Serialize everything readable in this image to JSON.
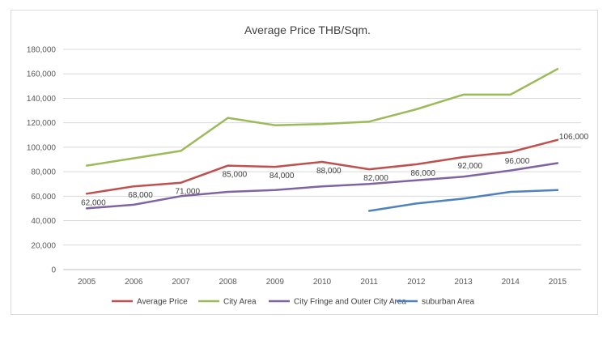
{
  "chart_data": {
    "type": "line",
    "title": "Average Price THB/Sqm.",
    "xlabel": "",
    "ylabel": "",
    "categories": [
      "2005",
      "2006",
      "2007",
      "2008",
      "2009",
      "2010",
      "2011",
      "2012",
      "2013",
      "2014",
      "2015"
    ],
    "ylim": [
      0,
      180000
    ],
    "yticks": [
      0,
      20000,
      40000,
      60000,
      80000,
      100000,
      120000,
      140000,
      160000,
      180000
    ],
    "ytick_labels": [
      "0",
      "20,000",
      "40,000",
      "60,000",
      "80,000",
      "100,000",
      "120,000",
      "140,000",
      "160,000",
      "180,000"
    ],
    "grid": true,
    "legend_position": "bottom",
    "series": [
      {
        "name": "Average Price",
        "color": "#c0504d",
        "values": [
          62000,
          68000,
          71000,
          85000,
          84000,
          88000,
          82000,
          86000,
          92000,
          96000,
          106000
        ],
        "data_labels": [
          "62,000",
          "68,000",
          "71,000",
          "85,000",
          "84,000",
          "88,000",
          "82,000",
          "86,000",
          "92,000",
          "96,000",
          "106,000"
        ]
      },
      {
        "name": "City Area",
        "color": "#9bbb59",
        "values": [
          85000,
          91000,
          97000,
          124000,
          118000,
          119000,
          121000,
          131000,
          143000,
          143000,
          164000
        ]
      },
      {
        "name": "City Fringe and Outer City Area",
        "color": "#8064a2",
        "values": [
          50000,
          53000,
          60000,
          63500,
          65000,
          68000,
          70000,
          73000,
          76000,
          81000,
          87000
        ]
      },
      {
        "name": "suburban Area",
        "color": "#4f81bd",
        "values": [
          null,
          null,
          null,
          null,
          null,
          null,
          48000,
          54000,
          58000,
          63500,
          65000
        ]
      }
    ]
  }
}
